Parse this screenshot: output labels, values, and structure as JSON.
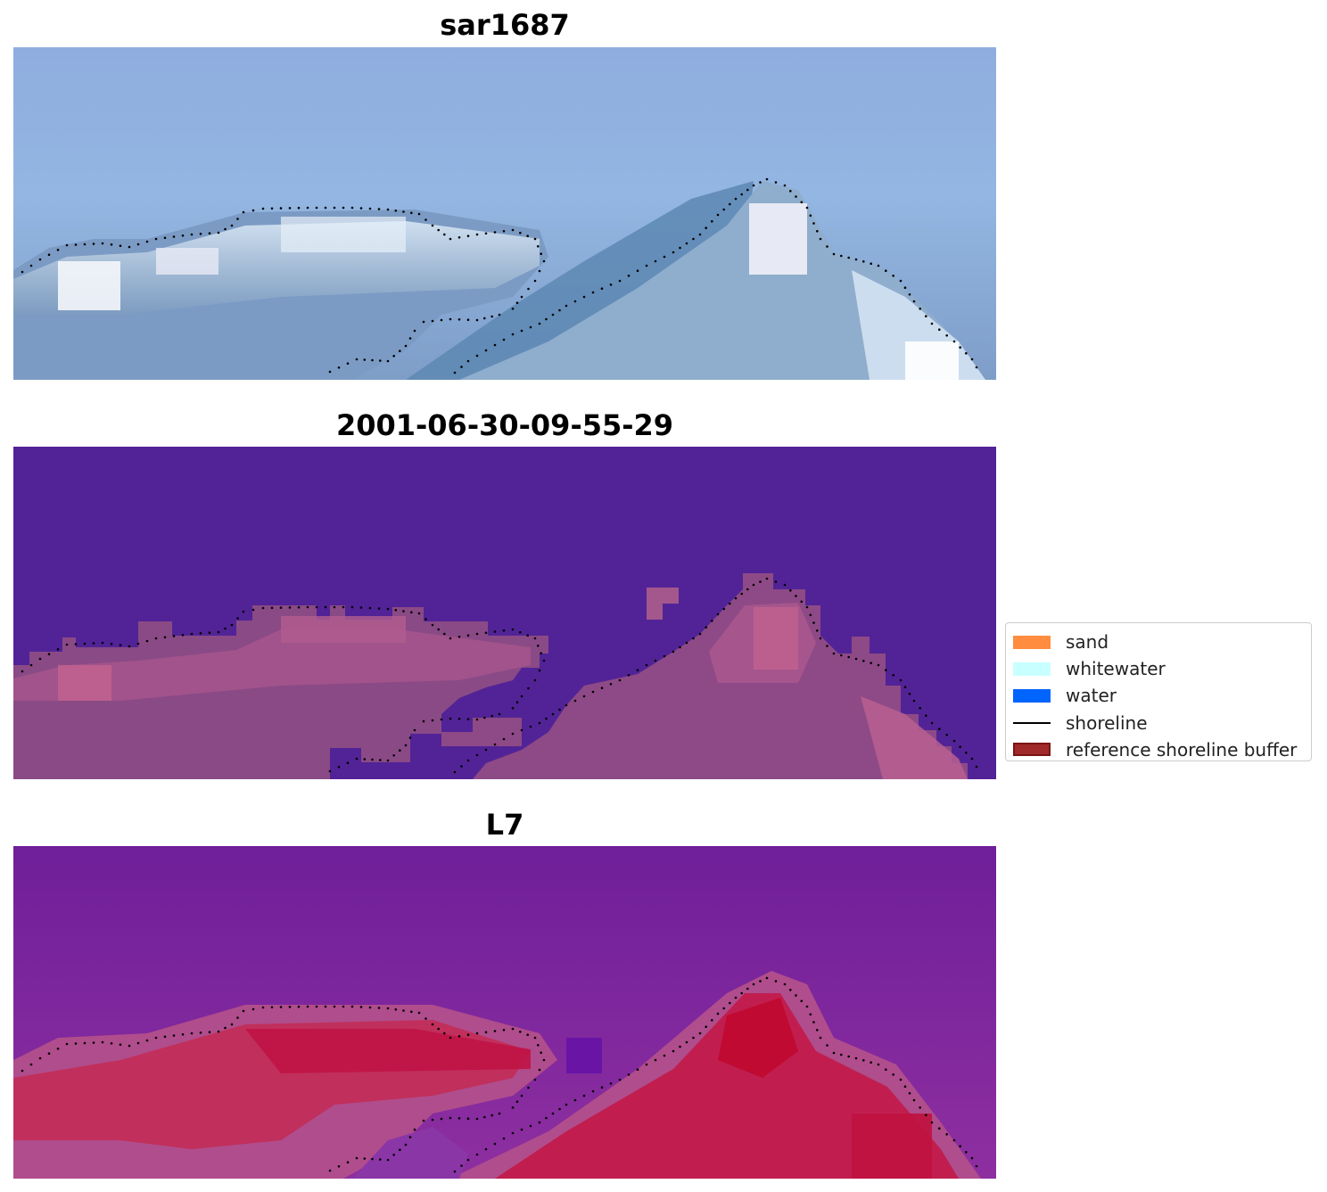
{
  "panels": [
    {
      "id": "rgb",
      "title": "sar1687"
    },
    {
      "id": "classification",
      "title": "2001-06-30-09-55-29"
    },
    {
      "id": "mndwi",
      "title": "L7"
    }
  ],
  "legend": {
    "items": [
      {
        "label": "sand",
        "kind": "patch",
        "color": "#ff8c3f"
      },
      {
        "label": "whitewater",
        "kind": "patch",
        "color": "#c8ffff"
      },
      {
        "label": "water",
        "kind": "patch",
        "color": "#0064ff"
      },
      {
        "label": "shoreline",
        "kind": "line",
        "color": "#000000"
      },
      {
        "label": "reference shoreline buffer",
        "kind": "patch",
        "color": "#a02a2a",
        "edge": "#7a1515"
      }
    ]
  },
  "colors": {
    "sky": "#8fb0e0",
    "background_purple": "#522396",
    "land_pink": "#9e4f86",
    "land_highlight": "#c0608f",
    "mndwi_purple": "#7d2aa0",
    "mndwi_red": "#c21a48"
  }
}
